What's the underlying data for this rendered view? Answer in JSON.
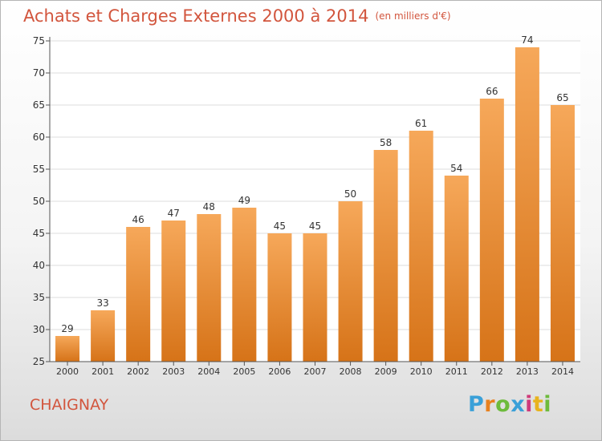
{
  "title": "Achats et Charges Externes 2000 à 2014",
  "unit": "(en milliers d'€)",
  "commune": "CHAIGNAY",
  "logo": {
    "text": "Proxiti",
    "colors": [
      "#3aa0d8",
      "#e8811e",
      "#6dbb3c",
      "#3aa0d8",
      "#cf3b7b",
      "#e8b31e",
      "#6dbb3c"
    ]
  },
  "colors": {
    "title": "#d2553d",
    "bar_top": "#f6a85a",
    "bar_bottom": "#d67318",
    "grid": "#dddddd",
    "axis": "#555555"
  },
  "chart_data": {
    "type": "bar",
    "categories": [
      "2000",
      "2001",
      "2002",
      "2003",
      "2004",
      "2005",
      "2006",
      "2007",
      "2008",
      "2009",
      "2010",
      "2011",
      "2012",
      "2013",
      "2014"
    ],
    "values": [
      29,
      33,
      46,
      47,
      48,
      49,
      45,
      45,
      50,
      58,
      61,
      54,
      66,
      74,
      65
    ],
    "ylim": [
      25,
      75
    ],
    "yticks": [
      25,
      30,
      35,
      40,
      45,
      50,
      55,
      60,
      65,
      70,
      75
    ],
    "grid": true,
    "data_labels": true
  }
}
